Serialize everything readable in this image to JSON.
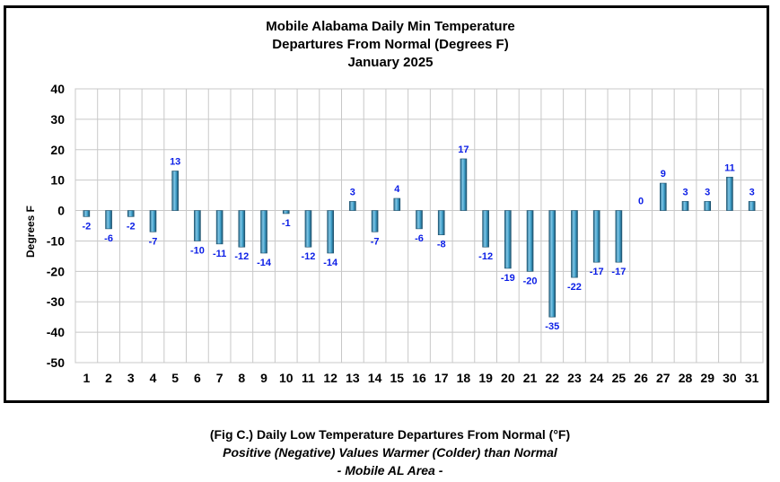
{
  "chart_data": {
    "type": "bar",
    "title_lines": [
      "Mobile Alabama Daily Min Temperature",
      "Departures From Normal (Degrees F)",
      "January 2025"
    ],
    "xlabel": "",
    "ylabel": "Degrees F",
    "ylim": [
      -50,
      40
    ],
    "yticks": [
      40,
      30,
      20,
      10,
      0,
      -10,
      -20,
      -30,
      -40,
      -50
    ],
    "grid": true,
    "bar_color": "#3a8fb7",
    "label_color": "#0b1ee6",
    "categories": [
      "1",
      "2",
      "3",
      "4",
      "5",
      "6",
      "7",
      "8",
      "9",
      "10",
      "11",
      "12",
      "13",
      "14",
      "15",
      "16",
      "17",
      "18",
      "19",
      "20",
      "21",
      "22",
      "23",
      "24",
      "25",
      "26",
      "27",
      "28",
      "29",
      "30",
      "31"
    ],
    "values": [
      -2,
      -6,
      -2,
      -7,
      13,
      -10,
      -11,
      -12,
      -14,
      -1,
      -12,
      -14,
      3,
      -7,
      4,
      -6,
      -8,
      17,
      -12,
      -19,
      -20,
      -35,
      -22,
      -17,
      -17,
      0,
      9,
      3,
      3,
      11,
      3
    ]
  },
  "caption": {
    "line1": "(Fig C.) Daily Low Temperature Departures From Normal (°F)",
    "line2": "Positive (Negative) Values Warmer (Colder) than Normal",
    "line3": "- Mobile AL Area -"
  }
}
